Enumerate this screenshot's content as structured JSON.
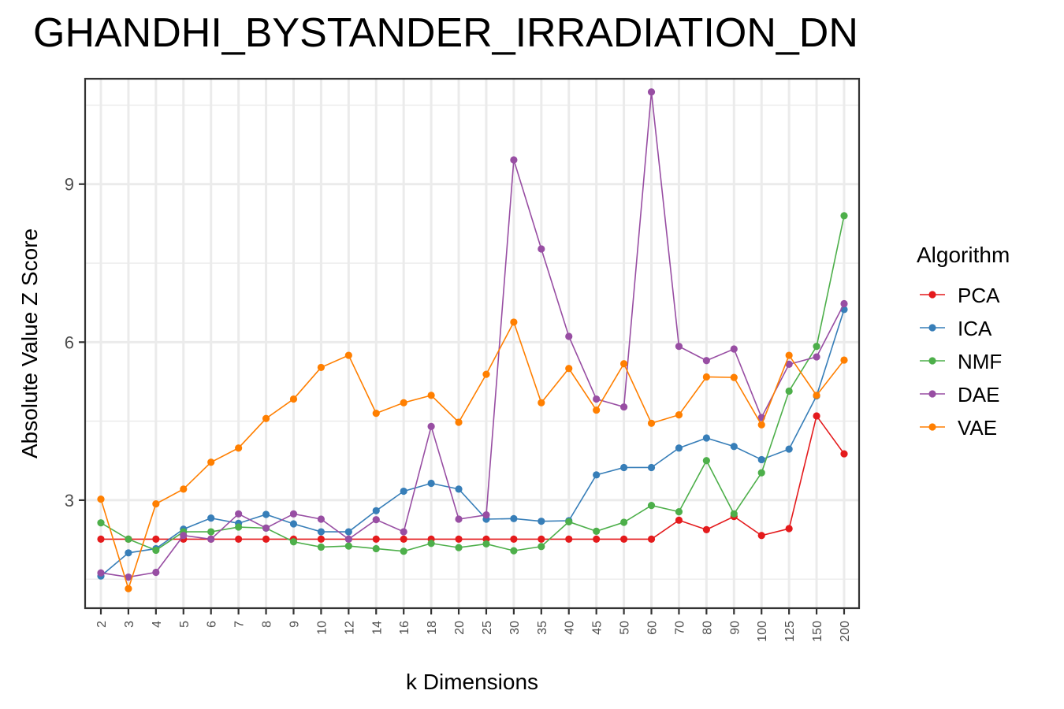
{
  "chart_data": {
    "type": "line",
    "title": "GHANDHI_BYSTANDER_IRRADIATION_DN",
    "xlabel": "k Dimensions",
    "ylabel": "Absolute Value Z Score",
    "categories": [
      "2",
      "3",
      "4",
      "5",
      "6",
      "7",
      "8",
      "9",
      "10",
      "12",
      "14",
      "16",
      "18",
      "20",
      "25",
      "30",
      "35",
      "40",
      "45",
      "50",
      "60",
      "70",
      "80",
      "90",
      "100",
      "125",
      "150",
      "200"
    ],
    "ylim": [
      0.95,
      11.0
    ],
    "yticks": [
      3,
      6,
      9
    ],
    "grid": true,
    "legend": {
      "title": "Algorithm",
      "position": "right"
    },
    "series": [
      {
        "name": "PCA",
        "color": "#e41a1c",
        "values": [
          2.26,
          2.26,
          2.26,
          2.26,
          2.26,
          2.26,
          2.26,
          2.26,
          2.26,
          2.26,
          2.26,
          2.26,
          2.26,
          2.26,
          2.26,
          2.26,
          2.26,
          2.26,
          2.26,
          2.26,
          2.26,
          2.62,
          2.44,
          2.69,
          2.33,
          2.46,
          4.6,
          3.88
        ]
      },
      {
        "name": "ICA",
        "color": "#377eb8",
        "values": [
          1.56,
          2.0,
          2.08,
          2.45,
          2.66,
          2.56,
          2.73,
          2.55,
          2.4,
          2.4,
          2.8,
          3.17,
          3.32,
          3.21,
          2.64,
          2.65,
          2.6,
          2.61,
          3.48,
          3.62,
          3.62,
          3.99,
          4.18,
          4.02,
          3.77,
          3.97,
          4.98,
          6.62
        ]
      },
      {
        "name": "NMF",
        "color": "#4daf4a",
        "values": [
          2.57,
          2.26,
          2.05,
          2.4,
          2.4,
          2.49,
          2.47,
          2.21,
          2.11,
          2.13,
          2.08,
          2.03,
          2.18,
          2.1,
          2.17,
          2.04,
          2.12,
          2.59,
          2.41,
          2.58,
          2.9,
          2.78,
          3.75,
          2.74,
          3.52,
          5.07,
          5.92,
          8.4
        ]
      },
      {
        "name": "DAE",
        "color": "#984ea3",
        "values": [
          1.62,
          1.54,
          1.63,
          2.33,
          2.26,
          2.74,
          2.47,
          2.74,
          2.64,
          2.26,
          2.63,
          2.4,
          4.4,
          2.64,
          2.72,
          9.46,
          7.77,
          6.11,
          4.92,
          4.77,
          10.75,
          5.92,
          5.65,
          5.87,
          4.57,
          5.58,
          5.72,
          6.73
        ]
      },
      {
        "name": "VAE",
        "color": "#ff7f00",
        "values": [
          3.02,
          1.32,
          2.93,
          3.21,
          3.72,
          3.99,
          4.55,
          4.92,
          5.52,
          5.75,
          4.65,
          4.85,
          4.99,
          4.48,
          5.39,
          6.38,
          4.85,
          5.5,
          4.71,
          5.59,
          4.46,
          4.62,
          5.34,
          5.33,
          4.43,
          5.75,
          4.99,
          5.66
        ]
      }
    ]
  }
}
